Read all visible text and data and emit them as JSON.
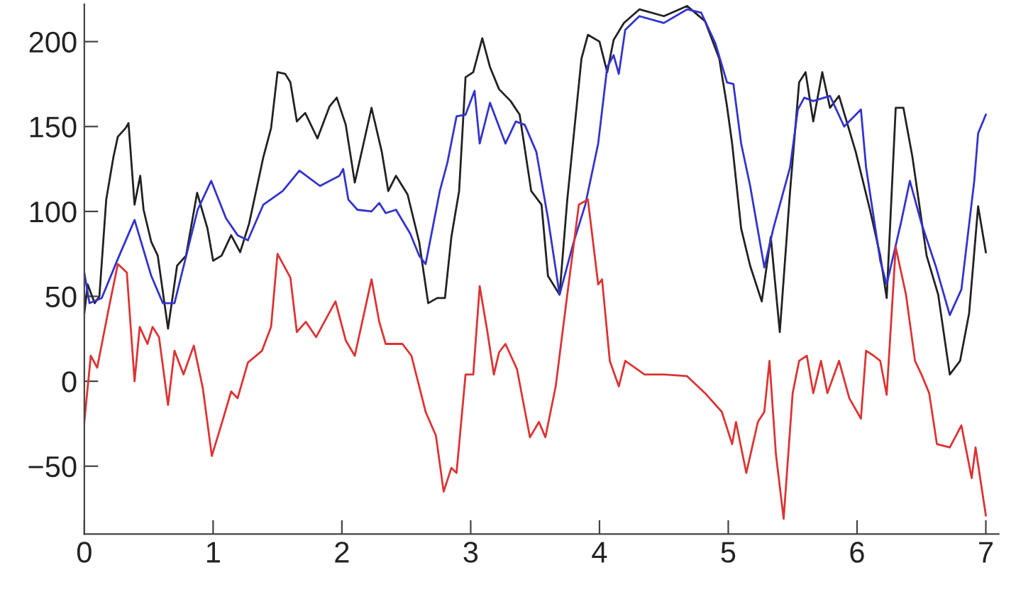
{
  "chart_data": {
    "type": "line",
    "xlim": [
      0,
      7.1
    ],
    "ylim": [
      -90,
      222
    ],
    "xticks": [
      0,
      1,
      2,
      3,
      4,
      5,
      6,
      7
    ],
    "yticks": [
      -50,
      0,
      50,
      100,
      150,
      200
    ],
    "grid": false,
    "marker": "none",
    "line_style": "solid",
    "series": [
      {
        "color": "#222222",
        "x": [
          0,
          0.026,
          0.08,
          0.117,
          0.17,
          0.226,
          0.26,
          0.32,
          0.343,
          0.39,
          0.434,
          0.46,
          0.52,
          0.57,
          0.65,
          0.72,
          0.79,
          0.876,
          0.956,
          1.0,
          1.066,
          1.14,
          1.21,
          1.28,
          1.39,
          1.45,
          1.5,
          1.56,
          1.6,
          1.65,
          1.715,
          1.81,
          1.905,
          1.96,
          2.03,
          2.1,
          2.23,
          2.31,
          2.36,
          2.42,
          2.51,
          2.6,
          2.67,
          2.74,
          2.8,
          2.85,
          2.91,
          2.96,
          3.02,
          3.09,
          3.15,
          3.22,
          3.31,
          3.38,
          3.47,
          3.55,
          3.6,
          3.69,
          3.75,
          3.86,
          3.91,
          4.0,
          4.06,
          4.11,
          4.19,
          4.31,
          4.5,
          4.68,
          4.82,
          4.93,
          4.99,
          5.03,
          5.1,
          5.17,
          5.26,
          5.33,
          5.4,
          5.48,
          5.55,
          5.6,
          5.66,
          5.73,
          5.79,
          5.86,
          5.99,
          6.1,
          6.18,
          6.23,
          6.3,
          6.36,
          6.43,
          6.54,
          6.63,
          6.72,
          6.8,
          6.87,
          6.94,
          7.0
        ],
        "values": [
          40,
          57,
          46,
          50,
          107,
          132,
          144,
          149,
          152,
          104,
          121,
          101,
          82,
          74,
          31,
          68,
          74,
          111,
          90,
          71,
          74,
          86,
          76,
          93,
          132,
          149,
          182,
          181,
          176,
          153,
          158,
          143,
          162,
          167,
          151,
          117,
          161,
          135,
          112,
          121,
          110,
          82,
          46,
          49,
          49,
          85,
          112,
          179,
          182,
          202,
          185,
          172,
          165,
          157,
          112,
          104,
          62,
          51,
          107,
          190,
          204,
          200,
          182,
          201,
          211,
          219,
          215,
          221,
          212,
          190,
          162,
          140,
          90,
          68,
          47,
          85,
          29,
          112,
          176,
          182,
          153,
          182,
          161,
          168,
          135,
          101,
          74,
          49,
          161,
          161,
          132,
          74,
          51,
          4,
          12,
          40,
          103,
          76
        ]
      },
      {
        "color": "#3333cc",
        "x": [
          0,
          0.04,
          0.135,
          0.26,
          0.39,
          0.52,
          0.61,
          0.7,
          0.88,
          0.985,
          1.1,
          1.19,
          1.27,
          1.39,
          1.54,
          1.67,
          1.83,
          1.98,
          2.01,
          2.05,
          2.12,
          2.23,
          2.29,
          2.34,
          2.42,
          2.53,
          2.6,
          2.65,
          2.76,
          2.82,
          2.89,
          2.96,
          3.03,
          3.07,
          3.15,
          3.27,
          3.35,
          3.42,
          3.51,
          3.6,
          3.69,
          3.8,
          3.89,
          3.99,
          4.06,
          4.11,
          4.15,
          4.2,
          4.31,
          4.5,
          4.68,
          4.79,
          4.9,
          4.99,
          5.04,
          5.1,
          5.17,
          5.28,
          5.35,
          5.48,
          5.54,
          5.59,
          5.66,
          5.79,
          5.9,
          6.03,
          6.07,
          6.18,
          6.23,
          6.34,
          6.41,
          6.5,
          6.61,
          6.72,
          6.81,
          6.91,
          6.94,
          7.0
        ],
        "values": [
          64,
          46,
          49,
          72,
          95,
          62,
          46,
          46,
          101,
          118,
          96,
          86,
          83,
          104,
          112,
          124,
          115,
          121,
          125,
          107,
          101,
          100,
          105,
          99,
          101,
          87,
          74,
          69,
          112,
          129,
          156,
          157,
          171,
          140,
          164,
          140,
          153,
          151,
          135,
          96,
          51,
          82,
          104,
          140,
          185,
          192,
          181,
          207,
          215,
          211,
          219,
          217,
          199,
          176,
          175,
          140,
          115,
          67,
          90,
          126,
          160,
          167,
          165,
          168,
          150,
          160,
          126,
          71,
          57,
          93,
          118,
          93,
          68,
          39,
          54,
          118,
          146,
          157
        ]
      },
      {
        "color": "#dd3333",
        "x": [
          0,
          0.05,
          0.1,
          0.19,
          0.26,
          0.33,
          0.39,
          0.43,
          0.49,
          0.53,
          0.58,
          0.65,
          0.7,
          0.77,
          0.85,
          0.92,
          0.99,
          1.07,
          1.14,
          1.19,
          1.27,
          1.38,
          1.45,
          1.5,
          1.6,
          1.65,
          1.72,
          1.8,
          1.95,
          2.03,
          2.1,
          2.23,
          2.29,
          2.34,
          2.47,
          2.54,
          2.65,
          2.73,
          2.79,
          2.85,
          2.89,
          2.96,
          3.02,
          3.07,
          3.13,
          3.18,
          3.22,
          3.27,
          3.36,
          3.46,
          3.53,
          3.58,
          3.66,
          3.75,
          3.84,
          3.91,
          3.99,
          4.02,
          4.08,
          4.15,
          4.2,
          4.35,
          4.5,
          4.68,
          4.82,
          4.95,
          5.03,
          5.06,
          5.14,
          5.23,
          5.28,
          5.32,
          5.37,
          5.43,
          5.5,
          5.55,
          5.61,
          5.66,
          5.72,
          5.77,
          5.86,
          5.94,
          6.03,
          6.07,
          6.13,
          6.18,
          6.23,
          6.3,
          6.38,
          6.45,
          6.5,
          6.56,
          6.62,
          6.72,
          6.81,
          6.89,
          6.92,
          7.0
        ],
        "values": [
          -24,
          15,
          8,
          43,
          69,
          64,
          0,
          32,
          22,
          32,
          26,
          -14,
          18,
          4,
          21,
          -4,
          -44,
          -24,
          -6,
          -10,
          11,
          18,
          32,
          75,
          61,
          29,
          35,
          26,
          47,
          24,
          15,
          60,
          35,
          22,
          22,
          15,
          -18,
          -32,
          -65,
          -51,
          -54,
          4,
          4,
          56,
          29,
          4,
          17,
          22,
          7,
          -33,
          -24,
          -33,
          -3,
          51,
          104,
          107,
          57,
          60,
          12,
          -3,
          12,
          4,
          4,
          3,
          -7,
          -18,
          -37,
          -24,
          -54,
          -24,
          -18,
          12,
          -43,
          -81,
          -7,
          12,
          15,
          -7,
          12,
          -7,
          12,
          -10,
          -22,
          18,
          15,
          12,
          -8,
          79,
          51,
          12,
          4,
          -7,
          -37,
          -39,
          -26,
          -57,
          -39,
          -79
        ]
      }
    ]
  }
}
